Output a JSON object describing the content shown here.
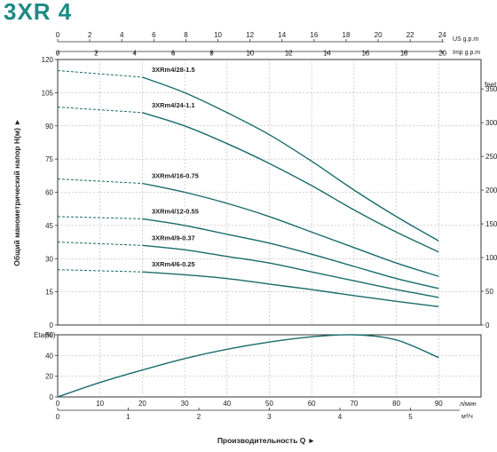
{
  "title": "3XR 4",
  "colors": {
    "accent": "#1d8a84",
    "curve": "#1a6b6b",
    "axis": "#333333",
    "grid": "#aaaaaa"
  },
  "chart_data": [
    {
      "type": "line",
      "name": "head",
      "x": [
        0,
        20,
        30,
        40,
        50,
        60,
        70,
        80,
        90
      ],
      "xlim": [
        0,
        100
      ],
      "ylim": [
        0,
        120
      ],
      "yticks": [
        0,
        15,
        30,
        45,
        60,
        75,
        90,
        105,
        120
      ],
      "ylabel": "Общий манометрический напор H(м) ►",
      "xlabel": "Производительность Q ►",
      "unit_lpm": "л/мин",
      "unit_m3h": "м³/ч",
      "feet_label": "feet",
      "feet_ticks": [
        0,
        50,
        100,
        150,
        200,
        250,
        300,
        350
      ],
      "us_gpm_label": "US g.p.m",
      "us_gpm_ticks": [
        0,
        2,
        4,
        6,
        8,
        10,
        12,
        14,
        16,
        18,
        20,
        22,
        24
      ],
      "imp_gpm_label": "Imp g.p.m",
      "imp_gpm_ticks": [
        0,
        2,
        4,
        6,
        8,
        10,
        12,
        14,
        16,
        18,
        20
      ],
      "lpm_ticks": [
        0,
        10,
        20,
        30,
        40,
        50,
        60,
        70,
        80,
        90
      ],
      "m3h_ticks": [
        0,
        1,
        2,
        3,
        4,
        5
      ],
      "dashed_until": 22,
      "series": [
        {
          "name": "3XRm4/28-1.5",
          "values": [
            115,
            112,
            105,
            96,
            86,
            74,
            61,
            49,
            38
          ]
        },
        {
          "name": "3XRm4/24-1.1",
          "values": [
            98.5,
            96,
            90,
            82,
            73,
            63,
            52,
            42,
            33
          ]
        },
        {
          "name": "3XRm4/16-0.75",
          "values": [
            66,
            64,
            60,
            55,
            49,
            42,
            35,
            28,
            22
          ]
        },
        {
          "name": "3XRm4/12-0.55",
          "values": [
            49,
            48,
            45,
            41,
            37,
            32,
            26.5,
            21,
            16.5
          ]
        },
        {
          "name": "3XRm4/9-0.37",
          "values": [
            37.5,
            36,
            34,
            31,
            28,
            24,
            20,
            16,
            12.5
          ]
        },
        {
          "name": "3XRm4/6-0.25",
          "values": [
            25,
            24,
            22.7,
            21,
            18.5,
            16,
            13.3,
            10.7,
            8.3
          ]
        }
      ]
    },
    {
      "type": "line",
      "name": "efficiency",
      "ylabel": "Eta(%)",
      "ylim": [
        0,
        60
      ],
      "yticks": [
        0,
        20,
        40,
        60
      ],
      "x": [
        0,
        10,
        20,
        30,
        40,
        50,
        60,
        70,
        80,
        90
      ],
      "values": [
        0,
        14,
        26,
        37,
        46,
        53,
        58,
        60,
        55,
        38
      ]
    }
  ]
}
